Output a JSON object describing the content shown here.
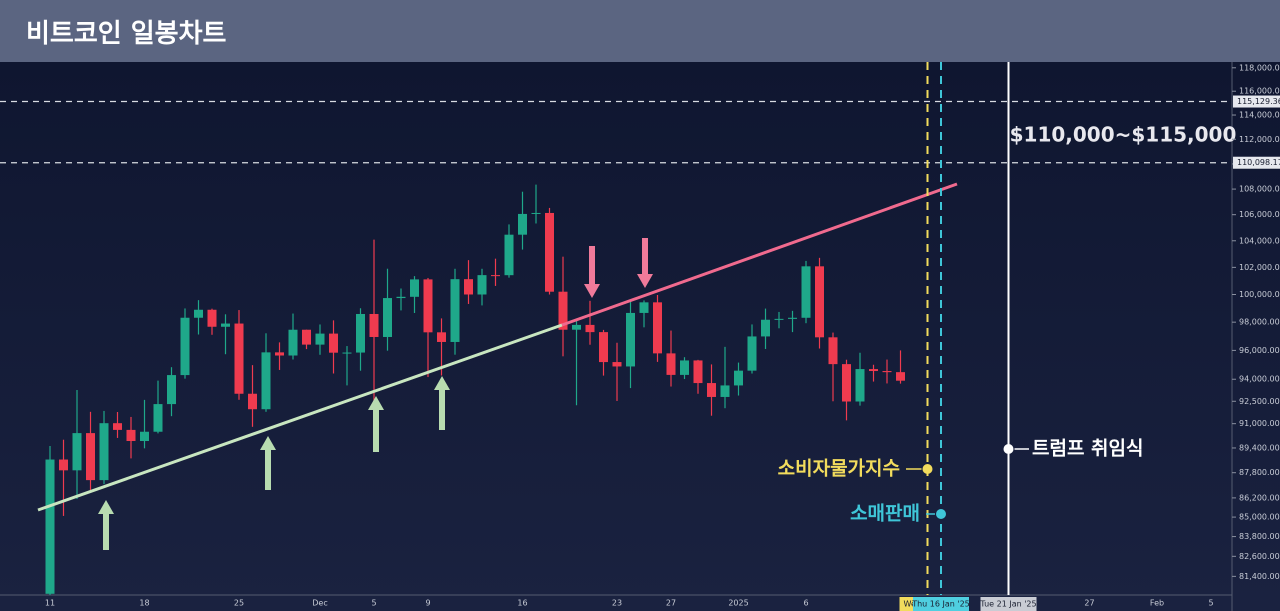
{
  "chart_data": {
    "type": "candlestick",
    "title": "비트코인 일봉차트",
    "categories": [
      "11",
      null,
      null,
      null,
      null,
      null,
      null,
      "18",
      null,
      null,
      null,
      null,
      null,
      null,
      "25",
      null,
      null,
      null,
      null,
      null,
      "Dec",
      null,
      null,
      null,
      "5",
      null,
      null,
      null,
      "9",
      null,
      null,
      null,
      null,
      null,
      null,
      "16",
      null,
      null,
      null,
      null,
      null,
      null,
      "23",
      null,
      null,
      null,
      "27",
      null,
      null,
      null,
      null,
      "2025",
      null,
      null,
      null,
      null,
      "6",
      null,
      null,
      null,
      null,
      null,
      null,
      null,
      null,
      "We",
      "Thu 16 Jan '25",
      null,
      null,
      null,
      null,
      "Tue 21 Jan '25",
      null,
      null,
      null,
      null,
      null,
      "27",
      null,
      null,
      null,
      null,
      "Feb",
      null,
      null,
      null,
      "5"
    ],
    "open": [
      80370,
      88648,
      87952,
      90375,
      87325,
      91032,
      90587,
      89855,
      90465,
      92310,
      94286,
      98317,
      98892,
      97672,
      97901,
      93010,
      91965,
      95863,
      95643,
      97460,
      96407,
      97185,
      95840,
      95849,
      98587,
      96945,
      99740,
      99831,
      101109,
      97276,
      96593,
      101125,
      100000,
      101424,
      101420,
      104463,
      106058,
      106133,
      100204,
      97461,
      97805,
      97291,
      95186,
      94881,
      98663,
      99429,
      95792,
      94299,
      95300,
      93738,
      92792,
      93576,
      94591,
      96984,
      98174,
      98236,
      98314,
      102078,
      96922,
      95043,
      92484,
      94701,
      94566,
      94488,
      null,
      null,
      null,
      null,
      null,
      null,
      null,
      null,
      null,
      null,
      null,
      null,
      null,
      null,
      null,
      null,
      null,
      null,
      null,
      null,
      null,
      null,
      null
    ],
    "high": [
      89530,
      89940,
      93265,
      91790,
      91850,
      91779,
      91449,
      92594,
      93905,
      94831,
      98988,
      99588,
      98970,
      98564,
      98871,
      94973,
      97208,
      96564,
      98619,
      97463,
      97836,
      98130,
      96305,
      99000,
      104088,
      101898,
      100439,
      101351,
      101215,
      98270,
      101895,
      102540,
      101895,
      102650,
      105250,
      107793,
      108353,
      106524,
      102800,
      98233,
      99540,
      97448,
      96538,
      99487,
      99569,
      99963,
      97400,
      95525,
      95340,
      95024,
      96250,
      95150,
      97839,
      98976,
      98734,
      98813,
      102482,
      102712,
      97258,
      95349,
      95836,
      95000,
      95360,
      96000,
      null,
      null,
      null,
      null,
      null,
      null,
      null,
      null,
      null,
      null,
      null,
      null,
      null,
      null,
      null,
      null,
      null,
      null,
      null,
      null,
      null,
      null,
      null
    ],
    "low": [
      80216,
      85072,
      86127,
      86668,
      87073,
      90057,
      88722,
      89376,
      90357,
      91500,
      94040,
      97122,
      97100,
      95734,
      92600,
      90791,
      91792,
      94640,
      95364,
      96092,
      95693,
      94395,
      93578,
      94587,
      90500,
      95981,
      98844,
      98657,
      94150,
      94256,
      95700,
      99311,
      99205,
      100626,
      101237,
      103333,
      105321,
      100000,
      95587,
      92232,
      96398,
      94250,
      92520,
      93396,
      97632,
      95199,
      93500,
      94014,
      93009,
      91530,
      92033,
      92888,
      94392,
      96100,
      97562,
      97291,
      97926,
      96132,
      92500,
      91220,
      92206,
      93840,
      93712,
      93700,
      null,
      null,
      null,
      null,
      null,
      null,
      null,
      null,
      null,
      null,
      null,
      null,
      null,
      null,
      null,
      null,
      null,
      null,
      null,
      null,
      null,
      null,
      null
    ],
    "close": [
      88648,
      87952,
      90375,
      87325,
      91032,
      90587,
      89855,
      90465,
      92310,
      94286,
      98317,
      98892,
      97672,
      97901,
      93010,
      91965,
      95863,
      95643,
      97460,
      96407,
      97185,
      95840,
      95849,
      98587,
      96945,
      99740,
      99831,
      101109,
      97276,
      96593,
      101125,
      100000,
      101424,
      101420,
      104463,
      106058,
      106133,
      100204,
      97461,
      97805,
      97291,
      95186,
      94881,
      98663,
      99429,
      95792,
      94299,
      95300,
      93738,
      92792,
      93576,
      94591,
      96984,
      98174,
      98236,
      98314,
      102078,
      96922,
      95043,
      92484,
      94701,
      94566,
      94488,
      93900,
      null,
      null,
      null,
      null,
      null,
      null,
      null,
      null,
      null,
      null,
      null,
      null,
      null,
      null,
      null,
      null,
      null,
      null,
      null,
      null,
      null,
      null,
      null
    ],
    "up_color": "#1fa88a",
    "down_color": "#ef3b4f",
    "log_scale": true,
    "grid": false,
    "ylim": [
      80300,
      118500
    ],
    "yticks": [
      {
        "value": 118000,
        "label": "118,000.00"
      },
      {
        "value": 116000,
        "label": "116,000.00"
      },
      {
        "value": 114000,
        "label": "114,000.00"
      },
      {
        "value": 112000,
        "label": "112,000.00"
      },
      {
        "value": 110000,
        "label": "110,000.00"
      },
      {
        "value": 108000,
        "label": "108,000.00"
      },
      {
        "value": 106000,
        "label": "106,000.00"
      },
      {
        "value": 104000,
        "label": "104,000.00"
      },
      {
        "value": 102000,
        "label": "102,000.00"
      },
      {
        "value": 100000,
        "label": "100,000.00"
      },
      {
        "value": 98000,
        "label": "98,000.00"
      },
      {
        "value": 96000,
        "label": "96,000.00"
      },
      {
        "value": 94000,
        "label": "94,000.00"
      },
      {
        "value": 92500,
        "label": "92,500.00"
      },
      {
        "value": 91000,
        "label": "91,000.00"
      },
      {
        "value": 89400,
        "label": "89,400.00"
      },
      {
        "value": 87800,
        "label": "87,800.00"
      },
      {
        "value": 86200,
        "label": "86,200.00"
      },
      {
        "value": 85000,
        "label": "85,000.00"
      },
      {
        "value": 83800,
        "label": "83,800.00"
      },
      {
        "value": 82600,
        "label": "82,600.00"
      },
      {
        "value": 81400,
        "label": "81,400.00"
      }
    ],
    "price_lines": [
      {
        "value": 115129.36,
        "label": "115,129.36"
      },
      {
        "value": 110098.17,
        "label": "110,098.17"
      }
    ],
    "annotation": "$110,000~$115,000",
    "events": [
      {
        "label": "소비자물가지수",
        "at": "We",
        "color": "#f2dc5d",
        "axis_color": "#f2dc5d"
      },
      {
        "label": "소매판매",
        "at": "Thu 16 Jan '25",
        "color": "#3fc6d8",
        "axis_color": "#4fcfe0"
      },
      {
        "label": "트럼프 취임식",
        "at": "Tue 21 Jan '25",
        "color": "#ffffff",
        "axis_color": "#c9ccd4"
      }
    ]
  }
}
